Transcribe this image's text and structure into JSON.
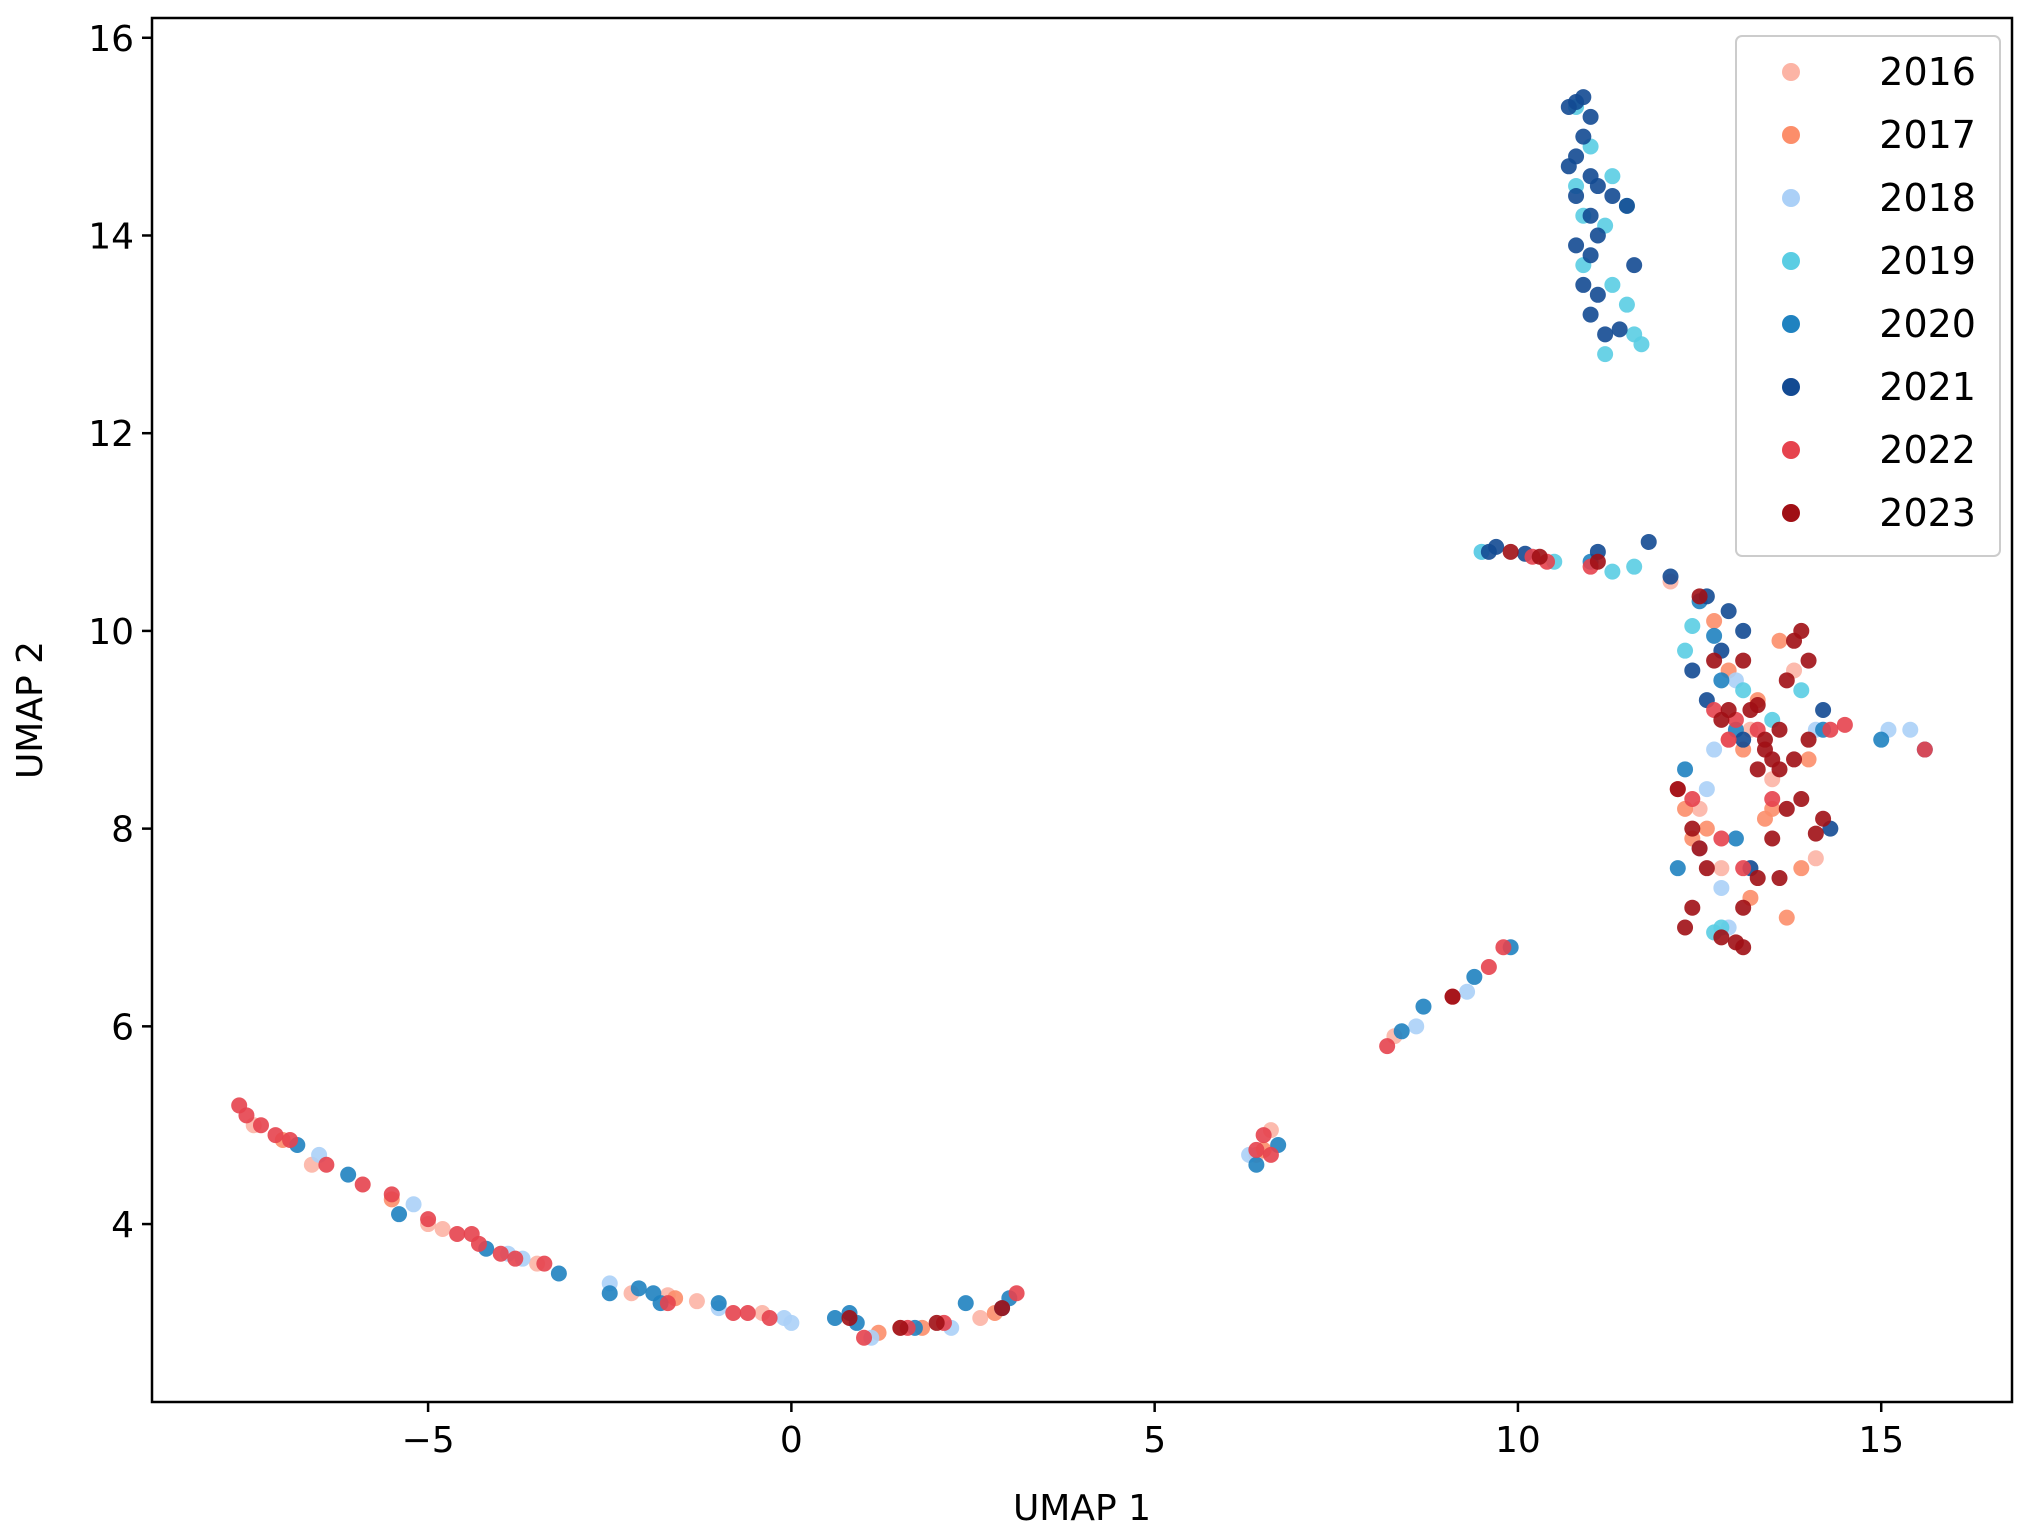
{
  "chart_data": {
    "type": "scatter",
    "title": "",
    "xlabel": "UMAP 1",
    "ylabel": "UMAP 2",
    "xlim": [
      -8.8,
      16.8
    ],
    "ylim": [
      2.2,
      16.2
    ],
    "xticks": [
      -5,
      0,
      5,
      10,
      15
    ],
    "xtick_labels": [
      "−5",
      "0",
      "5",
      "10",
      "15"
    ],
    "yticks": [
      4,
      6,
      8,
      10,
      12,
      14,
      16
    ],
    "ytick_labels": [
      "4",
      "6",
      "8",
      "10",
      "12",
      "14",
      "16"
    ],
    "grid": false,
    "legend_position": "top-right",
    "series": [
      {
        "name": "2016",
        "color": "#fcb4a5",
        "points": [
          [
            -7.4,
            5.0
          ],
          [
            -6.6,
            4.6
          ],
          [
            -5.0,
            4.0
          ],
          [
            -4.8,
            3.95
          ],
          [
            -3.5,
            3.6
          ],
          [
            -2.2,
            3.3
          ],
          [
            -1.7,
            3.28
          ],
          [
            -1.3,
            3.22
          ],
          [
            -0.4,
            3.1
          ],
          [
            1.5,
            2.95
          ],
          [
            2.6,
            3.05
          ],
          [
            6.4,
            4.7
          ],
          [
            6.6,
            4.95
          ],
          [
            8.3,
            5.9
          ],
          [
            12.1,
            10.5
          ],
          [
            12.5,
            8.2
          ],
          [
            12.8,
            7.6
          ],
          [
            13.2,
            9.0
          ],
          [
            13.8,
            9.6
          ],
          [
            14.1,
            7.7
          ],
          [
            12.9,
            8.9
          ],
          [
            13.5,
            8.5
          ]
        ]
      },
      {
        "name": "2017",
        "color": "#fc8e6a",
        "points": [
          [
            -7.0,
            4.85
          ],
          [
            -5.5,
            4.25
          ],
          [
            -1.6,
            3.25
          ],
          [
            1.2,
            2.9
          ],
          [
            1.8,
            2.95
          ],
          [
            2.8,
            3.1
          ],
          [
            6.5,
            4.75
          ],
          [
            12.7,
            10.1
          ],
          [
            12.9,
            9.6
          ],
          [
            13.1,
            8.8
          ],
          [
            13.3,
            9.3
          ],
          [
            13.6,
            9.9
          ],
          [
            13.4,
            8.1
          ],
          [
            13.7,
            7.1
          ],
          [
            13.2,
            7.3
          ],
          [
            12.4,
            7.9
          ],
          [
            14.0,
            8.7
          ],
          [
            13.9,
            7.6
          ],
          [
            12.6,
            8.0
          ],
          [
            12.3,
            8.2
          ],
          [
            13.5,
            8.2
          ]
        ]
      },
      {
        "name": "2018",
        "color": "#abd0f7",
        "points": [
          [
            -6.5,
            4.7
          ],
          [
            -5.2,
            4.2
          ],
          [
            -3.7,
            3.65
          ],
          [
            -3.9,
            3.7
          ],
          [
            -2.5,
            3.4
          ],
          [
            -1.0,
            3.15
          ],
          [
            -0.1,
            3.05
          ],
          [
            0.0,
            3.0
          ],
          [
            1.1,
            2.85
          ],
          [
            2.2,
            2.95
          ],
          [
            6.3,
            4.7
          ],
          [
            8.6,
            6.0
          ],
          [
            9.3,
            6.35
          ],
          [
            9.5,
            10.8
          ],
          [
            12.7,
            8.8
          ],
          [
            13.0,
            9.5
          ],
          [
            12.8,
            7.4
          ],
          [
            12.9,
            7.0
          ],
          [
            14.1,
            9.0
          ],
          [
            12.6,
            8.4
          ],
          [
            15.4,
            9.0
          ],
          [
            15.1,
            9.0
          ],
          [
            12.5,
            7.8
          ]
        ]
      },
      {
        "name": "2019",
        "color": "#5acde3",
        "points": [
          [
            10.8,
            15.3
          ],
          [
            11.0,
            14.9
          ],
          [
            11.3,
            14.6
          ],
          [
            10.9,
            14.2
          ],
          [
            11.2,
            14.1
          ],
          [
            10.9,
            13.7
          ],
          [
            11.3,
            13.5
          ],
          [
            11.5,
            13.3
          ],
          [
            11.6,
            13.0
          ],
          [
            11.2,
            12.8
          ],
          [
            11.7,
            12.9
          ],
          [
            11.5,
            14.3
          ],
          [
            10.8,
            14.5
          ],
          [
            9.5,
            10.8
          ],
          [
            10.5,
            10.7
          ],
          [
            11.3,
            10.6
          ],
          [
            11.6,
            10.65
          ],
          [
            12.3,
            9.8
          ],
          [
            12.4,
            10.05
          ],
          [
            13.1,
            9.4
          ],
          [
            12.8,
            7.0
          ],
          [
            12.7,
            6.95
          ],
          [
            13.9,
            9.4
          ],
          [
            13.5,
            9.1
          ]
        ]
      },
      {
        "name": "2020",
        "color": "#1f82c0",
        "points": [
          [
            -6.8,
            4.8
          ],
          [
            -6.1,
            4.5
          ],
          [
            -5.4,
            4.1
          ],
          [
            -4.2,
            3.75
          ],
          [
            -3.2,
            3.5
          ],
          [
            -2.5,
            3.3
          ],
          [
            -2.1,
            3.35
          ],
          [
            -1.9,
            3.3
          ],
          [
            -1.8,
            3.2
          ],
          [
            -1.0,
            3.2
          ],
          [
            0.6,
            3.05
          ],
          [
            0.8,
            3.1
          ],
          [
            0.9,
            3.0
          ],
          [
            1.7,
            2.95
          ],
          [
            2.4,
            3.2
          ],
          [
            2.9,
            3.15
          ],
          [
            3.0,
            3.25
          ],
          [
            6.4,
            4.6
          ],
          [
            6.7,
            4.8
          ],
          [
            8.4,
            5.95
          ],
          [
            8.7,
            6.2
          ],
          [
            9.4,
            6.5
          ],
          [
            9.9,
            6.8
          ],
          [
            11.0,
            10.7
          ],
          [
            12.7,
            9.95
          ],
          [
            12.8,
            9.5
          ],
          [
            13.0,
            9.0
          ],
          [
            13.0,
            7.9
          ],
          [
            12.3,
            8.6
          ],
          [
            12.2,
            7.6
          ],
          [
            14.2,
            9.0
          ],
          [
            15.0,
            8.9
          ],
          [
            15.6,
            8.8
          ],
          [
            12.5,
            10.3
          ]
        ]
      },
      {
        "name": "2021",
        "color": "#134a92",
        "points": [
          [
            10.8,
            15.35
          ],
          [
            10.9,
            15.4
          ],
          [
            11.0,
            15.2
          ],
          [
            10.7,
            15.3
          ],
          [
            10.9,
            15.0
          ],
          [
            10.8,
            14.8
          ],
          [
            11.0,
            14.6
          ],
          [
            11.1,
            14.5
          ],
          [
            11.3,
            14.4
          ],
          [
            11.5,
            14.3
          ],
          [
            10.7,
            14.7
          ],
          [
            10.8,
            14.4
          ],
          [
            11.0,
            14.2
          ],
          [
            11.1,
            14.0
          ],
          [
            10.8,
            13.9
          ],
          [
            11.0,
            13.8
          ],
          [
            10.9,
            13.5
          ],
          [
            11.1,
            13.4
          ],
          [
            11.0,
            13.2
          ],
          [
            11.2,
            13.0
          ],
          [
            11.4,
            13.05
          ],
          [
            11.6,
            13.7
          ],
          [
            9.6,
            10.8
          ],
          [
            9.7,
            10.85
          ],
          [
            10.1,
            10.78
          ],
          [
            11.1,
            10.8
          ],
          [
            11.8,
            10.9
          ],
          [
            12.1,
            10.55
          ],
          [
            12.6,
            10.35
          ],
          [
            12.8,
            9.8
          ],
          [
            13.1,
            10.0
          ],
          [
            12.6,
            9.3
          ],
          [
            12.4,
            9.6
          ],
          [
            13.1,
            8.9
          ],
          [
            13.2,
            7.6
          ],
          [
            14.3,
            8.0
          ],
          [
            14.2,
            9.2
          ],
          [
            12.9,
            10.2
          ]
        ]
      },
      {
        "name": "2022",
        "color": "#e6434e",
        "points": [
          [
            -7.6,
            5.2
          ],
          [
            -7.5,
            5.1
          ],
          [
            -7.3,
            5.0
          ],
          [
            -7.1,
            4.9
          ],
          [
            -6.9,
            4.85
          ],
          [
            -6.4,
            4.6
          ],
          [
            -5.9,
            4.4
          ],
          [
            -5.5,
            4.3
          ],
          [
            -5.0,
            4.05
          ],
          [
            -4.6,
            3.9
          ],
          [
            -4.4,
            3.9
          ],
          [
            -4.3,
            3.8
          ],
          [
            -4.0,
            3.7
          ],
          [
            -3.8,
            3.65
          ],
          [
            -3.4,
            3.6
          ],
          [
            -1.7,
            3.2
          ],
          [
            -0.8,
            3.1
          ],
          [
            -0.6,
            3.1
          ],
          [
            -0.3,
            3.05
          ],
          [
            1.0,
            2.85
          ],
          [
            1.6,
            2.95
          ],
          [
            2.1,
            3.0
          ],
          [
            3.1,
            3.3
          ],
          [
            6.4,
            4.75
          ],
          [
            6.5,
            4.9
          ],
          [
            6.6,
            4.7
          ],
          [
            8.2,
            5.8
          ],
          [
            9.1,
            6.3
          ],
          [
            9.6,
            6.6
          ],
          [
            9.8,
            6.8
          ],
          [
            10.2,
            10.75
          ],
          [
            10.4,
            10.7
          ],
          [
            11.0,
            10.65
          ],
          [
            12.2,
            8.4
          ],
          [
            12.7,
            9.2
          ],
          [
            13.0,
            9.1
          ],
          [
            12.9,
            8.9
          ],
          [
            13.3,
            9.0
          ],
          [
            13.5,
            8.3
          ],
          [
            13.1,
            7.6
          ],
          [
            12.4,
            8.3
          ],
          [
            14.3,
            9.0
          ],
          [
            14.5,
            9.05
          ],
          [
            15.6,
            8.8
          ],
          [
            12.8,
            7.9
          ]
        ]
      },
      {
        "name": "2023",
        "color": "#a00f15",
        "points": [
          [
            0.8,
            3.05
          ],
          [
            1.5,
            2.95
          ],
          [
            2.0,
            3.0
          ],
          [
            2.9,
            3.15
          ],
          [
            9.1,
            6.3
          ],
          [
            9.9,
            10.8
          ],
          [
            10.3,
            10.75
          ],
          [
            11.1,
            10.7
          ],
          [
            12.5,
            10.35
          ],
          [
            12.8,
            9.1
          ],
          [
            12.9,
            9.2
          ],
          [
            13.1,
            9.7
          ],
          [
            13.2,
            9.2
          ],
          [
            13.3,
            9.25
          ],
          [
            13.4,
            8.9
          ],
          [
            13.5,
            8.7
          ],
          [
            13.6,
            9.0
          ],
          [
            13.7,
            9.5
          ],
          [
            13.8,
            9.9
          ],
          [
            13.9,
            10.0
          ],
          [
            14.0,
            9.7
          ],
          [
            14.0,
            8.9
          ],
          [
            13.9,
            8.3
          ],
          [
            13.7,
            8.2
          ],
          [
            13.5,
            7.9
          ],
          [
            13.3,
            7.5
          ],
          [
            13.1,
            7.2
          ],
          [
            12.8,
            6.9
          ],
          [
            13.0,
            6.85
          ],
          [
            13.1,
            6.8
          ],
          [
            12.2,
            8.4
          ],
          [
            12.4,
            8.0
          ],
          [
            12.5,
            7.8
          ],
          [
            12.6,
            7.6
          ],
          [
            12.4,
            7.2
          ],
          [
            12.3,
            7.0
          ],
          [
            13.6,
            7.5
          ],
          [
            13.3,
            8.6
          ],
          [
            13.4,
            8.8
          ],
          [
            14.2,
            8.1
          ],
          [
            14.1,
            7.95
          ],
          [
            13.8,
            8.7
          ],
          [
            13.6,
            8.6
          ],
          [
            12.7,
            9.7
          ]
        ]
      }
    ]
  }
}
